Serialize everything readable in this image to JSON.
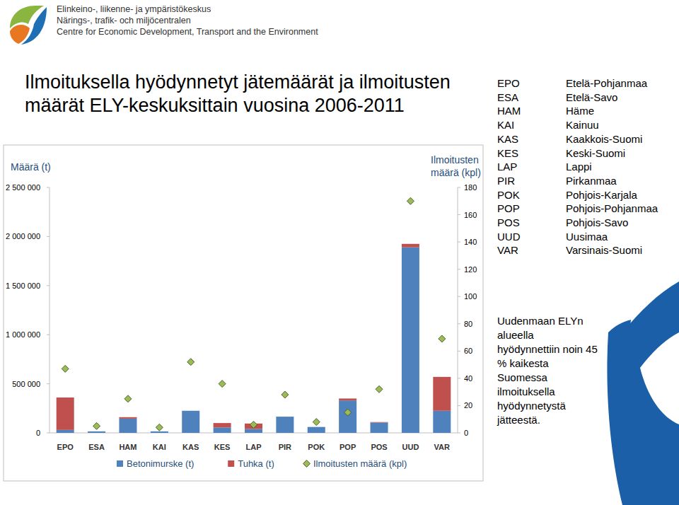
{
  "header": {
    "lines": [
      "Elinkeino-, liikenne- ja ympäristökeskus",
      "Närings-, trafik- och miljöcentralen",
      "Centre for Economic Development, Transport and the Environment"
    ]
  },
  "abbreviations": [
    {
      "code": "EPO",
      "name": "Etelä-Pohjanmaa"
    },
    {
      "code": "ESA",
      "name": "Etelä-Savo"
    },
    {
      "code": "HAM",
      "name": "Häme"
    },
    {
      "code": "KAI",
      "name": "Kainuu"
    },
    {
      "code": "KAS",
      "name": "Kaakkois-Suomi"
    },
    {
      "code": "KES",
      "name": "Keski-Suomi"
    },
    {
      "code": "LAP",
      "name": "Lappi"
    },
    {
      "code": "PIR",
      "name": "Pirkanmaa"
    },
    {
      "code": "POK",
      "name": "Pohjois-Karjala"
    },
    {
      "code": "POP",
      "name": "Pohjois-Pohjanmaa"
    },
    {
      "code": "POS",
      "name": "Pohjois-Savo"
    },
    {
      "code": "UUD",
      "name": "Uusimaa"
    },
    {
      "code": "VAR",
      "name": "Varsinais-Suomi"
    }
  ],
  "annotation": "Uudenmaan ELYn alueella hyödynnettiin noin 45 % kaikesta Suomessa ilmoituksella hyödynnetystä jätteestä.",
  "chart_data": {
    "type": "bar",
    "title": "Ilmoituksella hyödynnetyt jätemäärät ja ilmoitusten määrät ELY-keskuksittain vuosina 2006-2011",
    "y_label": "Määrä (t)",
    "y2_label": "Ilmoitusten määrä (kpl)",
    "stacked": true,
    "legend": "bottom",
    "categories": [
      "EPO",
      "ESA",
      "HAM",
      "KAI",
      "KAS",
      "KES",
      "LAP",
      "PIR",
      "POK",
      "POP",
      "POS",
      "UUD",
      "VAR"
    ],
    "series": [
      {
        "name": "Betonimurske (t)",
        "color": "#4f81bd",
        "type": "bar",
        "values": [
          30000,
          15000,
          145000,
          15000,
          225000,
          55000,
          40000,
          165000,
          60000,
          330000,
          105000,
          1890000,
          225000
        ]
      },
      {
        "name": "Tuhka (t)",
        "color": "#c0504d",
        "type": "bar",
        "values": [
          330000,
          0,
          15000,
          0,
          0,
          45000,
          55000,
          0,
          0,
          20000,
          5000,
          35000,
          345000
        ]
      },
      {
        "name": "Ilmoitusten määrä (kpl)",
        "color": "#9bbb59",
        "type": "scatter",
        "marker": "diamond",
        "axis": "y2",
        "values": [
          47,
          5,
          25,
          4,
          52,
          36,
          6,
          28,
          8,
          15,
          32,
          170,
          69
        ]
      }
    ],
    "ylim": [
      0,
      2500000
    ],
    "yticks": [
      0,
      {
        "value": 500000,
        "label": "500 000"
      },
      {
        "value": 1000000,
        "label": "1 000 000"
      },
      {
        "value": 1500000,
        "label": "1 500 000"
      },
      {
        "value": 2000000,
        "label": "2 000 000"
      },
      {
        "value": 2500000,
        "label": "2 500 000"
      }
    ],
    "y2lim": [
      0,
      180
    ],
    "y2ticks": [
      0,
      20,
      40,
      60,
      80,
      100,
      120,
      140,
      160,
      180
    ],
    "grid": false
  }
}
